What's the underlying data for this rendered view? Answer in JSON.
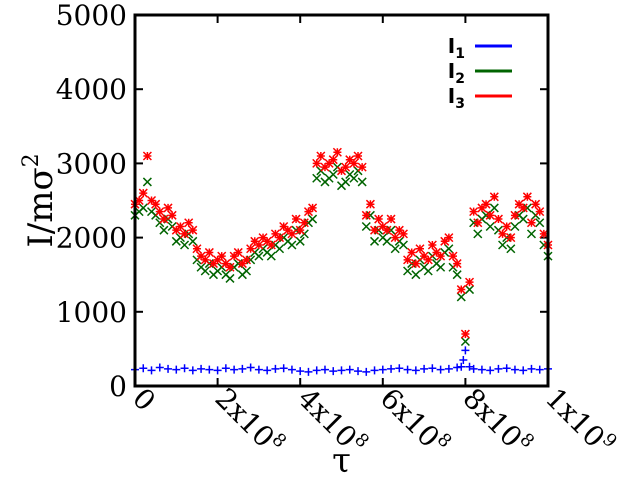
{
  "chart_data": {
    "type": "scatter",
    "title": "",
    "xlabel": "τ",
    "ylabel": "I/mσ",
    "ylabel_sup": "2",
    "xlim": [
      0,
      1000000000
    ],
    "ylim": [
      0,
      5000
    ],
    "grid": false,
    "legend_position": "top-right",
    "x_ticks": [
      {
        "value": 0,
        "base": "0",
        "exp": ""
      },
      {
        "value": 200000000,
        "base": "2x10",
        "exp": "8"
      },
      {
        "value": 400000000,
        "base": "4x10",
        "exp": "8"
      },
      {
        "value": 600000000,
        "base": "6x10",
        "exp": "8"
      },
      {
        "value": 800000000,
        "base": "8x10",
        "exp": "8"
      },
      {
        "value": 1000000000,
        "base": "1x10",
        "exp": "9"
      }
    ],
    "y_ticks": [
      {
        "value": 0,
        "label": "0"
      },
      {
        "value": 1000,
        "label": "1000"
      },
      {
        "value": 2000,
        "label": "2000"
      },
      {
        "value": 3000,
        "label": "3000"
      },
      {
        "value": 4000,
        "label": "4000"
      },
      {
        "value": 5000,
        "label": "5000"
      }
    ],
    "series": [
      {
        "name": "I",
        "name_sub": "1",
        "color": "#0000ff",
        "marker": "plus",
        "x": [
          0,
          20000000,
          40000000,
          60000000,
          80000000,
          100000000,
          120000000,
          140000000,
          160000000,
          180000000,
          200000000,
          220000000,
          240000000,
          260000000,
          280000000,
          300000000,
          320000000,
          340000000,
          360000000,
          380000000,
          400000000,
          420000000,
          440000000,
          460000000,
          480000000,
          500000000,
          520000000,
          540000000,
          560000000,
          580000000,
          600000000,
          620000000,
          640000000,
          660000000,
          680000000,
          700000000,
          720000000,
          740000000,
          760000000,
          780000000,
          790000000,
          795000000,
          800000000,
          810000000,
          820000000,
          840000000,
          860000000,
          880000000,
          900000000,
          920000000,
          940000000,
          960000000,
          980000000,
          1000000000
        ],
        "y": [
          220,
          240,
          210,
          250,
          230,
          220,
          240,
          210,
          230,
          220,
          210,
          240,
          220,
          230,
          250,
          220,
          210,
          230,
          240,
          220,
          200,
          190,
          210,
          220,
          200,
          210,
          220,
          200,
          190,
          210,
          220,
          230,
          240,
          220,
          210,
          230,
          240,
          220,
          230,
          250,
          260,
          350,
          480,
          260,
          230,
          220,
          210,
          230,
          240,
          220,
          210,
          230,
          220,
          230
        ]
      },
      {
        "name": "I",
        "name_sub": "2",
        "color": "#006400",
        "marker": "cross",
        "x": [
          0,
          10000000,
          20000000,
          30000000,
          40000000,
          50000000,
          60000000,
          70000000,
          80000000,
          90000000,
          100000000,
          110000000,
          120000000,
          130000000,
          140000000,
          150000000,
          160000000,
          170000000,
          180000000,
          190000000,
          200000000,
          210000000,
          220000000,
          230000000,
          240000000,
          250000000,
          260000000,
          270000000,
          280000000,
          290000000,
          300000000,
          310000000,
          320000000,
          330000000,
          340000000,
          350000000,
          360000000,
          370000000,
          380000000,
          390000000,
          400000000,
          410000000,
          420000000,
          430000000,
          440000000,
          450000000,
          460000000,
          470000000,
          480000000,
          490000000,
          500000000,
          510000000,
          520000000,
          530000000,
          540000000,
          550000000,
          560000000,
          570000000,
          580000000,
          590000000,
          600000000,
          610000000,
          620000000,
          630000000,
          640000000,
          650000000,
          660000000,
          670000000,
          680000000,
          690000000,
          700000000,
          710000000,
          720000000,
          730000000,
          740000000,
          750000000,
          760000000,
          770000000,
          780000000,
          790000000,
          800000000,
          810000000,
          820000000,
          830000000,
          840000000,
          850000000,
          860000000,
          870000000,
          880000000,
          890000000,
          900000000,
          910000000,
          920000000,
          930000000,
          940000000,
          950000000,
          960000000,
          970000000,
          980000000,
          990000000,
          1000000000
        ],
        "y": [
          2300,
          2350,
          2400,
          2750,
          2350,
          2300,
          2200,
          2100,
          2250,
          2150,
          1950,
          2000,
          1900,
          2050,
          1950,
          1700,
          1600,
          1550,
          1650,
          1500,
          1550,
          1600,
          1500,
          1450,
          1600,
          1650,
          1500,
          1550,
          1700,
          1800,
          1750,
          1850,
          1800,
          1750,
          1900,
          1850,
          2000,
          1950,
          1900,
          2100,
          1950,
          2050,
          2200,
          2250,
          2800,
          2900,
          2750,
          2800,
          2850,
          2950,
          2700,
          2750,
          2850,
          2800,
          2900,
          2750,
          2150,
          2300,
          1950,
          2100,
          2000,
          1950,
          2100,
          1850,
          1950,
          1900,
          1550,
          1650,
          1500,
          1700,
          1600,
          1550,
          1750,
          1650,
          1600,
          1800,
          1850,
          1600,
          1500,
          1200,
          600,
          1300,
          2200,
          2050,
          2250,
          2300,
          2150,
          2400,
          2100,
          1900,
          2000,
          1850,
          2150,
          2300,
          2250,
          2400,
          2050,
          2300,
          2200,
          1900,
          1750
        ]
      },
      {
        "name": "I",
        "name_sub": "3",
        "color": "#ff0000",
        "marker": "star",
        "x": [
          0,
          10000000,
          20000000,
          30000000,
          40000000,
          50000000,
          60000000,
          70000000,
          80000000,
          90000000,
          100000000,
          110000000,
          120000000,
          130000000,
          140000000,
          150000000,
          160000000,
          170000000,
          180000000,
          190000000,
          200000000,
          210000000,
          220000000,
          230000000,
          240000000,
          250000000,
          260000000,
          270000000,
          280000000,
          290000000,
          300000000,
          310000000,
          320000000,
          330000000,
          340000000,
          350000000,
          360000000,
          370000000,
          380000000,
          390000000,
          400000000,
          410000000,
          420000000,
          430000000,
          440000000,
          450000000,
          460000000,
          470000000,
          480000000,
          490000000,
          500000000,
          510000000,
          520000000,
          530000000,
          540000000,
          550000000,
          560000000,
          570000000,
          580000000,
          590000000,
          600000000,
          610000000,
          620000000,
          630000000,
          640000000,
          650000000,
          660000000,
          670000000,
          680000000,
          690000000,
          700000000,
          710000000,
          720000000,
          730000000,
          740000000,
          750000000,
          760000000,
          770000000,
          780000000,
          790000000,
          800000000,
          810000000,
          820000000,
          830000000,
          840000000,
          850000000,
          860000000,
          870000000,
          880000000,
          890000000,
          900000000,
          910000000,
          920000000,
          930000000,
          940000000,
          950000000,
          960000000,
          970000000,
          980000000,
          990000000,
          1000000000
        ],
        "y": [
          2450,
          2500,
          2600,
          3100,
          2500,
          2450,
          2350,
          2250,
          2400,
          2300,
          2100,
          2150,
          2050,
          2200,
          2100,
          1850,
          1750,
          1700,
          1800,
          1650,
          1700,
          1750,
          1650,
          1600,
          1750,
          1800,
          1650,
          1700,
          1850,
          1950,
          1900,
          2000,
          1950,
          1900,
          2050,
          2000,
          2150,
          2100,
          2050,
          2250,
          2100,
          2200,
          2350,
          2400,
          3000,
          3100,
          2950,
          3000,
          3050,
          3150,
          2900,
          2950,
          3050,
          3000,
          3100,
          2950,
          2300,
          2450,
          2100,
          2250,
          2150,
          2100,
          2250,
          2000,
          2100,
          2050,
          1700,
          1800,
          1650,
          1850,
          1750,
          1700,
          1900,
          1800,
          1750,
          1950,
          2000,
          1750,
          1650,
          1300,
          700,
          1400,
          2350,
          2200,
          2400,
          2450,
          2300,
          2550,
          2250,
          2050,
          2150,
          2000,
          2300,
          2450,
          2400,
          2550,
          2200,
          2450,
          2350,
          2050,
          1900
        ]
      }
    ]
  }
}
